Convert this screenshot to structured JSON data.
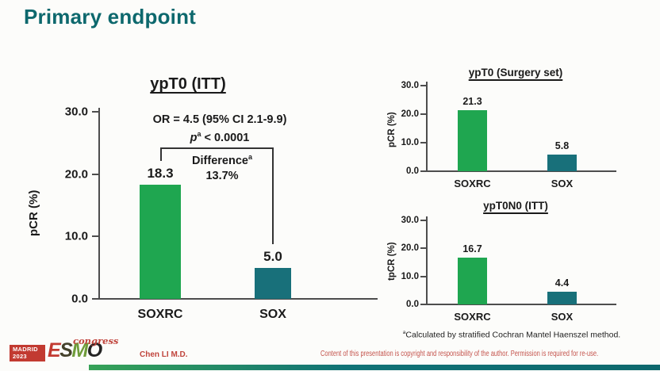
{
  "slide": {
    "title": "Primary endpoint",
    "author": "Chen LI M.D.",
    "disclaimer": "Content of this presentation is copyright and responsibility of the author. Permission is required for re-use.",
    "footnote": {
      "sup": "a",
      "text": "Calculated by stratified Cochran Mantel Haenszel method."
    },
    "logo": {
      "city": "MADRID",
      "year": "2023",
      "letters": [
        "E",
        "S",
        "M",
        "O"
      ],
      "suffix": "congress"
    }
  },
  "colors": {
    "title_teal": "#0d686d",
    "bar_green": "#1fa650",
    "bar_teal": "#18707a",
    "logo_red": "#c23a31",
    "text_red": "#c4534c"
  },
  "chart_data": [
    {
      "type": "bar",
      "title": "ypT0 (ITT)",
      "categories": [
        "SOXRC",
        "SOX"
      ],
      "values": [
        18.3,
        5.0
      ],
      "value_labels": [
        "18.3",
        "5.0"
      ],
      "ylabel": "pCR (%)",
      "ylim": [
        0,
        30
      ],
      "yticks": [
        "30.0",
        "20.0",
        "10.0",
        "0.0"
      ],
      "bar_colors": [
        "#1fa650",
        "#18707a"
      ],
      "grid": false,
      "annotations": {
        "or": "OR = 4.5 (95% CI 2.1-9.9)",
        "p_symbol": "p",
        "p_sup": "a",
        "p_rest": "< 0.0001",
        "diff_label": "Difference",
        "diff_sup": "a",
        "diff_value": "13.7%"
      }
    },
    {
      "type": "bar",
      "title": "ypT0 (Surgery set)",
      "categories": [
        "SOXRC",
        "SOX"
      ],
      "values": [
        21.3,
        5.8
      ],
      "value_labels": [
        "21.3",
        "5.8"
      ],
      "ylabel": "pCR (%)",
      "ylim": [
        0,
        30
      ],
      "yticks": [
        "30.0",
        "20.0",
        "10.0",
        "0.0"
      ],
      "bar_colors": [
        "#1fa650",
        "#18707a"
      ],
      "grid": false
    },
    {
      "type": "bar",
      "title": "ypT0N0 (ITT)",
      "categories": [
        "SOXRC",
        "SOX"
      ],
      "values": [
        16.7,
        4.4
      ],
      "value_labels": [
        "16.7",
        "4.4"
      ],
      "ylabel": "tpCR (%)",
      "ylim": [
        0,
        30
      ],
      "yticks": [
        "30.0",
        "20.0",
        "10.0",
        "0.0"
      ],
      "bar_colors": [
        "#1fa650",
        "#18707a"
      ],
      "grid": false
    }
  ]
}
